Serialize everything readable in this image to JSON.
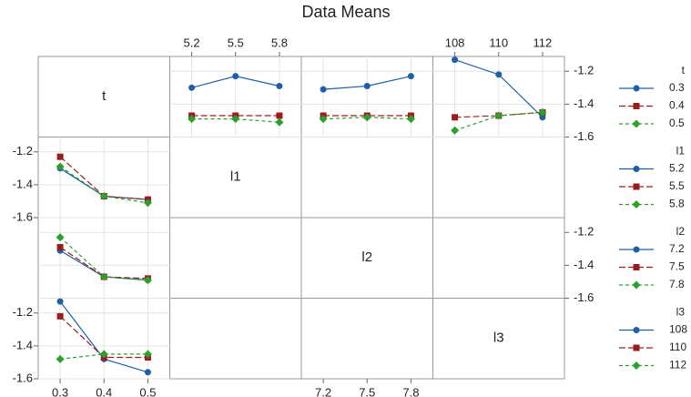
{
  "chart_data": {
    "type": "interaction_matrix",
    "title": "Data Means",
    "ylim": [
      -1.6,
      -1.11
    ],
    "yticks": [
      -1.2,
      -1.4,
      -1.6
    ],
    "grid": true,
    "colors": [
      "#1f5fa8",
      "#9b1c1c",
      "#2ca02c"
    ],
    "factors": [
      {
        "name": "t",
        "levels": [
          0.3,
          0.4,
          0.5
        ],
        "xlim": [
          0.25,
          0.55
        ]
      },
      {
        "name": "l1",
        "levels": [
          5.2,
          5.5,
          5.8
        ],
        "xlim": [
          5.05,
          5.95
        ]
      },
      {
        "name": "l2",
        "levels": [
          7.2,
          7.5,
          7.8
        ],
        "xlim": [
          7.05,
          7.95
        ]
      },
      {
        "name": "l3",
        "levels": [
          108,
          110,
          112
        ],
        "xlim": [
          107,
          113
        ]
      }
    ],
    "top_panels": [
      {
        "series": [
          {
            "values": [
              -1.3,
              -1.23,
              -1.29
            ]
          },
          {
            "values": [
              -1.47,
              -1.47,
              -1.47
            ]
          },
          {
            "values": [
              -1.49,
              -1.49,
              -1.51
            ]
          }
        ]
      },
      {
        "series": [
          {
            "values": [
              -1.31,
              -1.29,
              -1.23
            ]
          },
          {
            "values": [
              -1.47,
              -1.47,
              -1.47
            ]
          },
          {
            "values": [
              -1.49,
              -1.48,
              -1.49
            ]
          }
        ]
      },
      {
        "series": [
          {
            "values": [
              -1.13,
              -1.22,
              -1.48
            ]
          },
          {
            "values": [
              -1.48,
              -1.47,
              -1.45
            ]
          },
          {
            "values": [
              -1.56,
              -1.47,
              -1.45
            ]
          }
        ]
      }
    ],
    "left_panels": [
      {
        "series": [
          {
            "values": [
              -1.3,
              -1.47,
              -1.49
            ]
          },
          {
            "values": [
              -1.23,
              -1.47,
              -1.49
            ]
          },
          {
            "values": [
              -1.29,
              -1.47,
              -1.51
            ]
          }
        ]
      },
      {
        "series": [
          {
            "values": [
              -1.31,
              -1.47,
              -1.49
            ]
          },
          {
            "values": [
              -1.29,
              -1.47,
              -1.48
            ]
          },
          {
            "values": [
              -1.23,
              -1.47,
              -1.49
            ]
          }
        ]
      },
      {
        "series": [
          {
            "values": [
              -1.13,
              -1.48,
              -1.56
            ]
          },
          {
            "values": [
              -1.22,
              -1.47,
              -1.47
            ]
          },
          {
            "values": [
              -1.48,
              -1.45,
              -1.45
            ]
          }
        ]
      }
    ]
  }
}
